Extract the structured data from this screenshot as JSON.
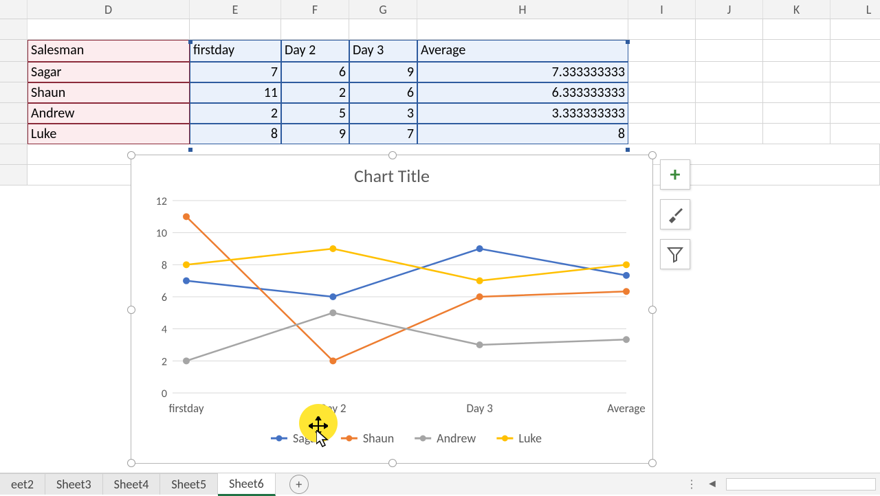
{
  "columns": {
    "labels": [
      "D",
      "E",
      "F",
      "G",
      "H",
      "I",
      "J",
      "K",
      "L"
    ],
    "widths": [
      236,
      133,
      99,
      99,
      307,
      98,
      98,
      98,
      112
    ]
  },
  "table": {
    "headers": [
      "Salesman",
      "firstday",
      "Day 2",
      "Day 3",
      "Average"
    ],
    "rows": [
      {
        "name": "Sagar",
        "vals": [
          7,
          6,
          9
        ],
        "avg": "7.333333333"
      },
      {
        "name": "Shaun",
        "vals": [
          11,
          2,
          6
        ],
        "avg": "6.333333333"
      },
      {
        "name": "Andrew",
        "vals": [
          2,
          5,
          3
        ],
        "avg": "3.333333333"
      },
      {
        "name": "Luke",
        "vals": [
          8,
          9,
          7
        ],
        "avg": "8"
      }
    ]
  },
  "chart": {
    "title": "Chart Title",
    "type": "line",
    "categories": [
      "firstday",
      "Day 2",
      "Day 3",
      "Average"
    ],
    "series": [
      {
        "name": "Sagar",
        "color": "#4472c4",
        "values": [
          7,
          6,
          9,
          7.333
        ]
      },
      {
        "name": "Shaun",
        "color": "#ed7d31",
        "values": [
          11,
          2,
          6,
          6.333
        ]
      },
      {
        "name": "Andrew",
        "color": "#a5a5a5",
        "values": [
          2,
          5,
          3,
          3.333
        ]
      },
      {
        "name": "Luke",
        "color": "#ffc000",
        "values": [
          8,
          9,
          7,
          8
        ]
      }
    ],
    "y_ticks": [
      0,
      2,
      4,
      6,
      8,
      10,
      12
    ],
    "ylim": [
      0,
      12
    ],
    "grid_color": "#d9d9d9",
    "axis_label_color": "#595959",
    "axis_label_fontsize": 16,
    "category_fontsize": 17,
    "legend_fontsize": 18,
    "marker_radius": 5,
    "line_width": 2.5
  },
  "side_buttons": {
    "add": "+",
    "brush": "brush",
    "filter": "filter"
  },
  "sheets": [
    "eet2",
    "Sheet3",
    "Sheet4",
    "Sheet5",
    "Sheet6"
  ],
  "scroll_dots": "⋮"
}
